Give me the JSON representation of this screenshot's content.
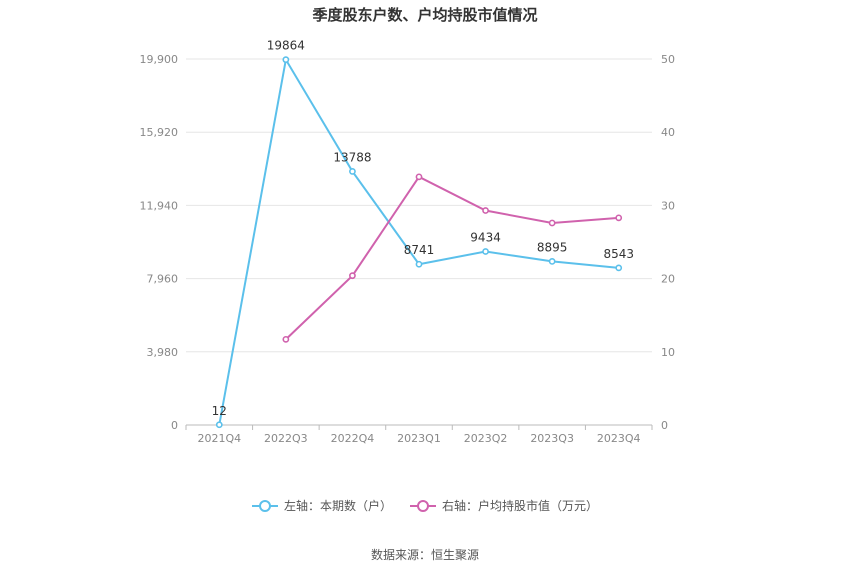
{
  "page": {
    "title": "季度股东户数、户均持股市值情况",
    "source": "数据来源：恒生聚源"
  },
  "colors": {
    "left_series": "#5bc0eb",
    "right_series": "#d062ad",
    "grid": "#e6e6e6",
    "axis": "#bbbbbb"
  },
  "chart_data": {
    "type": "line",
    "title": "季度股东户数、户均持股市值情况",
    "categories": [
      "2021Q4",
      "2022Q3",
      "2022Q4",
      "2023Q1",
      "2023Q2",
      "2023Q3",
      "2023Q4"
    ],
    "left_axis": {
      "ticks": [
        "0",
        "3,980",
        "7,960",
        "11,940",
        "15,920",
        "19,900"
      ],
      "range": [
        0,
        19900
      ]
    },
    "right_axis": {
      "ticks": [
        "0",
        "10",
        "20",
        "30",
        "40",
        "50"
      ],
      "range": [
        0,
        50
      ]
    },
    "series": [
      {
        "name": "左轴：本期数（户）",
        "axis": "left",
        "values": [
          12,
          19864,
          13788,
          8741,
          9434,
          8895,
          8543
        ],
        "labels": [
          "12",
          "19864",
          "13788",
          "8741",
          "9434",
          "8895",
          "8543"
        ]
      },
      {
        "name": "右轴：户均持股市值（万元）",
        "axis": "right",
        "values": [
          null,
          11.7,
          20.4,
          33.9,
          29.3,
          27.6,
          28.3
        ]
      }
    ],
    "grid": true,
    "legend_position": "bottom"
  }
}
